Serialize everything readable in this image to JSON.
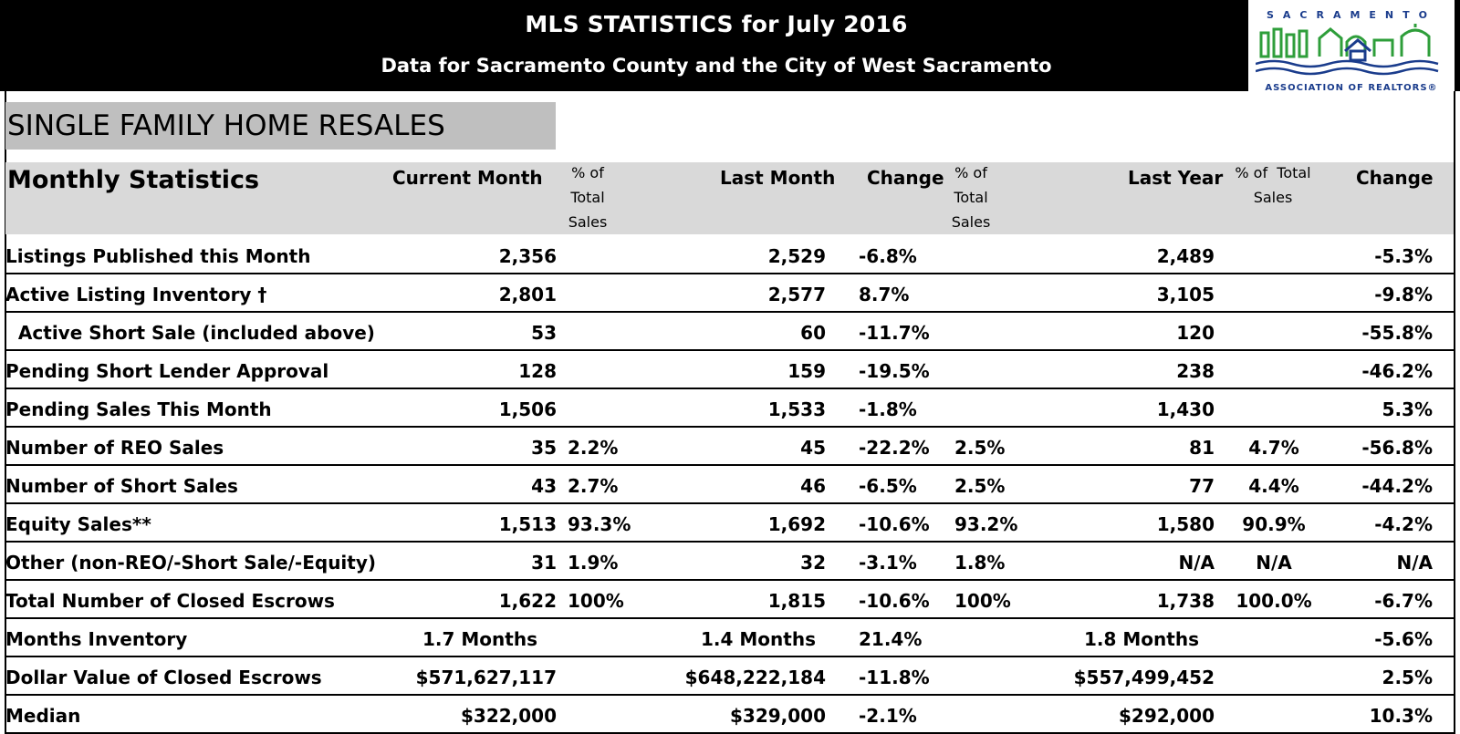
{
  "title": "MLS STATISTICS for July 2016",
  "subtitle": "Data for Sacramento County and the City of West Sacramento",
  "logo": {
    "top_text": "SACRAMENTO",
    "bottom_text": "ASSOCIATION OF REALTORS®",
    "colors": {
      "green": "#2e9e3a",
      "blue": "#1a3c8c"
    }
  },
  "section_title": "SINGLE FAMILY HOME RESALES",
  "headers": {
    "label": "Monthly Statistics",
    "current_month": "Current Month",
    "pct_total_1": [
      "% of",
      "Total",
      "Sales"
    ],
    "last_month": "Last Month",
    "change_1": "Change",
    "pct_total_2": [
      "% of",
      "Total",
      "Sales"
    ],
    "last_year": "Last Year",
    "pct_total_3": [
      "% of  Total",
      "Sales"
    ],
    "change_2": "Change"
  },
  "rows": [
    {
      "label": "Listings Published this Month",
      "current": "2,356",
      "pct1": "",
      "last_month": "2,529",
      "change1": "-6.8%",
      "pct2": "",
      "last_year": "2,489",
      "pct3": "",
      "change2": "-5.3%"
    },
    {
      "label": "Active Listing Inventory †",
      "current": "2,801",
      "pct1": "",
      "last_month": "2,577",
      "change1": "8.7%",
      "pct2": "",
      "last_year": "3,105",
      "pct3": "",
      "change2": "-9.8%"
    },
    {
      "label": "  Active Short Sale (included above)",
      "current": "53",
      "pct1": "",
      "last_month": "60",
      "change1": "-11.7%",
      "pct2": "",
      "last_year": "120",
      "pct3": "",
      "change2": "-55.8%"
    },
    {
      "label": "Pending Short Lender Approval",
      "current": "128",
      "pct1": "",
      "last_month": "159",
      "change1": "-19.5%",
      "pct2": "",
      "last_year": "238",
      "pct3": "",
      "change2": "-46.2%"
    },
    {
      "label": "Pending Sales This Month",
      "current": "1,506",
      "pct1": "",
      "last_month": "1,533",
      "change1": "-1.8%",
      "pct2": "",
      "last_year": "1,430",
      "pct3": "",
      "change2": "5.3%"
    },
    {
      "label": "Number of REO Sales",
      "current": "35",
      "pct1": "2.2%",
      "last_month": "45",
      "change1": "-22.2%",
      "pct2": "2.5%",
      "last_year": "81",
      "pct3": "4.7%",
      "change2": "-56.8%"
    },
    {
      "label": "Number of Short Sales",
      "current": "43",
      "pct1": "2.7%",
      "last_month": "46",
      "change1": "-6.5%",
      "pct2": "2.5%",
      "last_year": "77",
      "pct3": "4.4%",
      "change2": "-44.2%"
    },
    {
      "label": "Equity Sales**",
      "current": "1,513",
      "pct1": "93.3%",
      "last_month": "1,692",
      "change1": "-10.6%",
      "pct2": "93.2%",
      "last_year": "1,580",
      "pct3": "90.9%",
      "change2": "-4.2%"
    },
    {
      "label": "Other (non-REO/-Short Sale/-Equity)",
      "current": "31",
      "pct1": "1.9%",
      "last_month": "32",
      "change1": "-3.1%",
      "pct2": "1.8%",
      "last_year": "N/A",
      "pct3": "N/A",
      "change2": "N/A"
    },
    {
      "label": "Total Number of Closed Escrows",
      "current": "1,622",
      "pct1": "100%",
      "last_month": "1,815",
      "change1": "-10.6%",
      "pct2": "100%",
      "last_year": "1,738",
      "pct3": "100.0%",
      "change2": "-6.7%"
    },
    {
      "label": "Months Inventory",
      "current": "1.7 Months",
      "pct1": "",
      "last_month": "1.4 Months",
      "change1": "21.4%",
      "pct2": "",
      "last_year": "1.8 Months",
      "pct3": "",
      "change2": "-5.6%"
    },
    {
      "label": "Dollar Value of Closed Escrows",
      "current": "$571,627,117",
      "pct1": "",
      "last_month": "$648,222,184",
      "change1": "-11.8%",
      "pct2": "",
      "last_year": "$557,499,452",
      "pct3": "",
      "change2": "2.5%"
    },
    {
      "label": "Median",
      "current": "$322,000",
      "pct1": "",
      "last_month": "$329,000",
      "change1": "-2.1%",
      "pct2": "",
      "last_year": "$292,000",
      "pct3": "",
      "change2": "10.3%"
    }
  ]
}
